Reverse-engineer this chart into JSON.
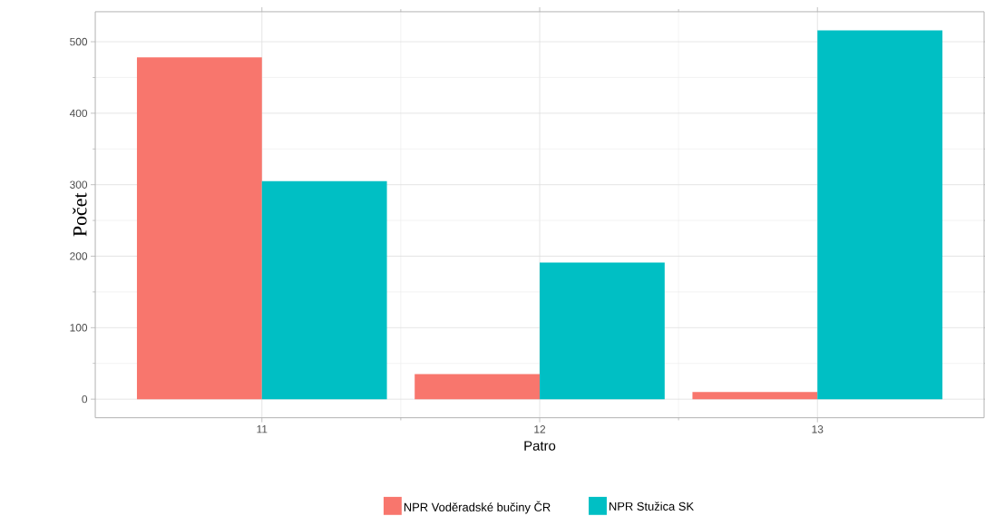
{
  "chart_data": {
    "type": "bar",
    "xlabel": "Patro",
    "ylabel": "Počet",
    "categories": [
      "11",
      "12",
      "13"
    ],
    "series": [
      {
        "name": "NPR Voděradské bučiny ČR",
        "color": "#f8766d",
        "values": [
          478,
          35,
          10
        ]
      },
      {
        "name": "NPR Stužica SK",
        "color": "#00bfc4",
        "values": [
          305,
          191,
          516
        ]
      }
    ],
    "ylim": [
      -26,
      542
    ],
    "yticks": [
      0,
      100,
      200,
      300,
      400,
      500
    ],
    "grid": true,
    "legend": "bottom"
  }
}
